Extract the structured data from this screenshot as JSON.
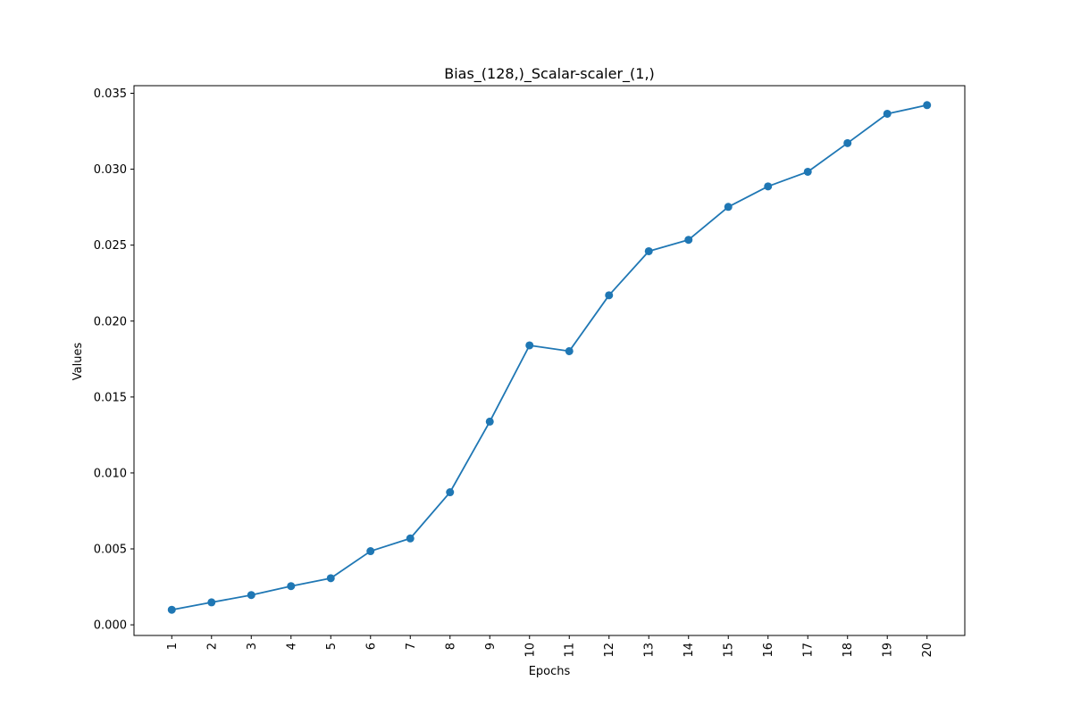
{
  "chart_data": {
    "type": "line",
    "title": "Bias_(128,)_Scalar-scaler_(1,)",
    "xlabel": "Epochs",
    "ylabel": "Values",
    "x": [
      1,
      2,
      3,
      4,
      5,
      6,
      7,
      8,
      9,
      10,
      11,
      12,
      13,
      14,
      15,
      16,
      17,
      18,
      19,
      20
    ],
    "x_tick_labels": [
      "1",
      "2",
      "3",
      "4",
      "5",
      "6",
      "7",
      "8",
      "9",
      "10",
      "11",
      "12",
      "13",
      "14",
      "15",
      "16",
      "17",
      "18",
      "19",
      "20"
    ],
    "y_ticks": [
      0.0,
      0.005,
      0.01,
      0.015,
      0.02,
      0.025,
      0.03,
      0.035
    ],
    "y_tick_labels": [
      "0.000",
      "0.005",
      "0.010",
      "0.015",
      "0.020",
      "0.025",
      "0.030",
      "0.035"
    ],
    "ylim": [
      -0.0007,
      0.0355
    ],
    "xlim": [
      0.05,
      20.95
    ],
    "grid": false,
    "series": [
      {
        "color": "#1f77b4",
        "marker": "circle",
        "values": [
          0.00099,
          0.00148,
          0.00196,
          0.00255,
          0.00307,
          0.00485,
          0.00569,
          0.00873,
          0.01338,
          0.0184,
          0.01802,
          0.0217,
          0.0246,
          0.02535,
          0.02752,
          0.02887,
          0.02983,
          0.03172,
          0.03365,
          0.03422
        ]
      }
    ]
  }
}
